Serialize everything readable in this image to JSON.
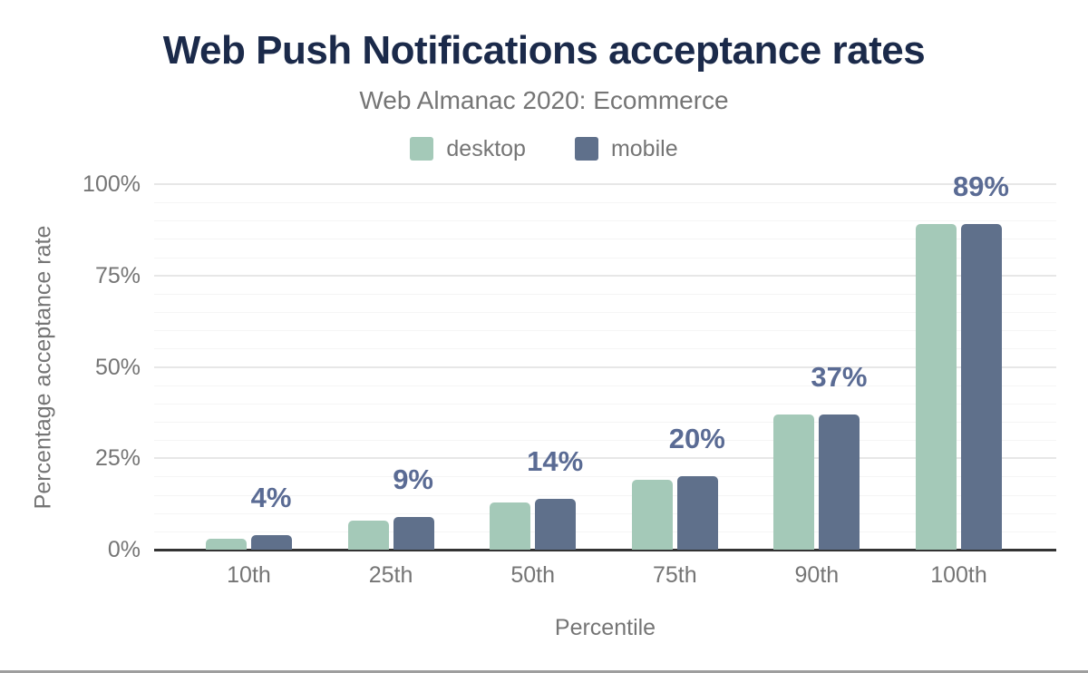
{
  "colors": {
    "title": "#1b2a4a",
    "muted_text": "#757575",
    "axis_line": "#333333",
    "desktop": "#a4c9b8",
    "mobile": "#5f708b",
    "data_label": "#5a6b94",
    "figure_bottom_border": "#9e9e9e"
  },
  "chart_data": {
    "type": "bar",
    "title": "Web Push Notifications acceptance rates",
    "subtitle": "Web Almanac 2020: Ecommerce",
    "categories": [
      "10th",
      "25th",
      "50th",
      "75th",
      "90th",
      "100th"
    ],
    "series": [
      {
        "name": "desktop",
        "color": "#a4c9b8",
        "values": [
          3,
          8,
          13,
          19,
          37,
          89
        ]
      },
      {
        "name": "mobile",
        "color": "#5f708b",
        "values": [
          4,
          9,
          14,
          20,
          37,
          89
        ]
      }
    ],
    "data_labels": {
      "text": [
        "4%",
        "9%",
        "14%",
        "20%",
        "37%",
        "89%"
      ],
      "anchor_series": "mobile",
      "color": "#5a6b94"
    },
    "xlabel": "Percentile",
    "ylabel": "Percentage acceptance rate",
    "ylim": [
      0,
      100
    ],
    "y_ticks": [
      {
        "value": 0,
        "label": "0%"
      },
      {
        "value": 25,
        "label": "25%"
      },
      {
        "value": 50,
        "label": "50%"
      },
      {
        "value": 75,
        "label": "75%"
      },
      {
        "value": 100,
        "label": "100%"
      }
    ],
    "minor_grid_step": 5,
    "major_grid_step": 25,
    "grid": true,
    "legend_position": "top"
  }
}
